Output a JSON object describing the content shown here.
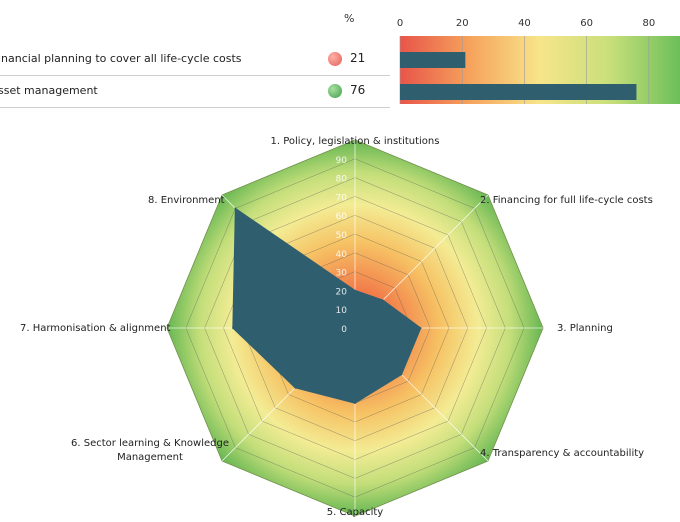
{
  "chart_data": [
    {
      "type": "bar",
      "orientation": "horizontal",
      "header": "%",
      "categories": [
        "inancial planning to cover all life-cycle costs",
        "sset management"
      ],
      "values": [
        21,
        76
      ],
      "status_colors": [
        "#e8706f",
        "#4fae57"
      ],
      "xticks": [
        "0",
        "20",
        "40",
        "60",
        "80"
      ],
      "xlim": [
        0,
        90
      ],
      "bar_color": "#2f5f6f",
      "background": "gradient red-to-green"
    },
    {
      "type": "radar",
      "axes": [
        "1. Policy, legislation & institutions",
        "2. Financing for full life-cycle costs",
        "3. Planning",
        "4. Transparency & accountability",
        "5. Capacity",
        "6. Sector learning & Knowledge Management",
        "7. Harmonisation & alignment",
        "8. Environment"
      ],
      "values": [
        20,
        21,
        35,
        35,
        40,
        45,
        65,
        90
      ],
      "rlim": [
        0,
        100
      ],
      "rticks": [
        "0",
        "10",
        "20",
        "30",
        "40",
        "50",
        "60",
        "70",
        "80",
        "90"
      ],
      "fill_color": "#2f5f6f",
      "background": "gradient red center to green outer ring"
    }
  ]
}
